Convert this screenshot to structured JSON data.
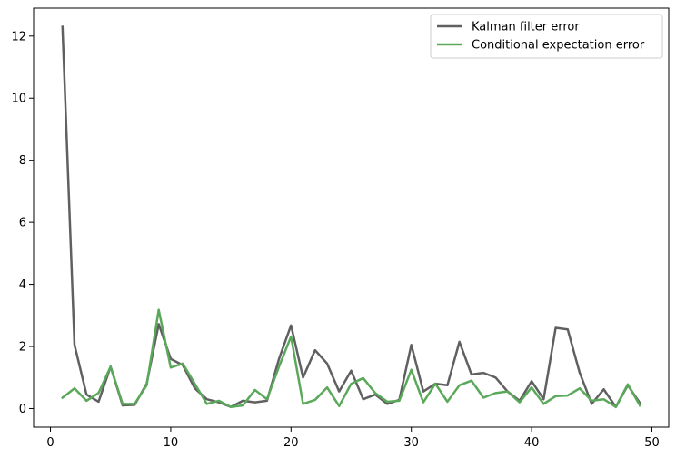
{
  "chart_data": {
    "type": "line",
    "x": [
      1,
      2,
      3,
      4,
      5,
      6,
      7,
      8,
      9,
      10,
      11,
      12,
      13,
      14,
      15,
      16,
      17,
      18,
      19,
      20,
      21,
      22,
      23,
      24,
      25,
      26,
      27,
      28,
      29,
      30,
      31,
      32,
      33,
      34,
      35,
      36,
      37,
      38,
      39,
      40,
      41,
      42,
      43,
      44,
      45,
      46,
      47,
      48,
      49
    ],
    "series": [
      {
        "name": "Kalman filter error",
        "color": "#606060",
        "values": [
          12.3,
          2.05,
          0.45,
          0.22,
          1.35,
          0.1,
          0.12,
          0.8,
          2.72,
          1.6,
          1.4,
          0.65,
          0.3,
          0.2,
          0.05,
          0.25,
          0.2,
          0.25,
          1.6,
          2.68,
          1.0,
          1.88,
          1.45,
          0.55,
          1.22,
          0.3,
          0.45,
          0.15,
          0.28,
          2.05,
          0.55,
          0.8,
          0.75,
          2.15,
          1.1,
          1.15,
          1.0,
          0.55,
          0.25,
          0.88,
          0.3,
          2.6,
          2.55,
          1.15,
          0.15,
          0.62,
          0.05,
          0.75,
          0.18
        ]
      },
      {
        "name": "Conditional expectation error",
        "color": "#5aa95a",
        "values": [
          0.35,
          0.65,
          0.25,
          0.5,
          1.35,
          0.15,
          0.15,
          0.75,
          3.18,
          1.32,
          1.45,
          0.8,
          0.15,
          0.25,
          0.05,
          0.1,
          0.6,
          0.3,
          1.35,
          2.32,
          0.15,
          0.28,
          0.68,
          0.08,
          0.8,
          0.98,
          0.5,
          0.22,
          0.25,
          1.25,
          0.2,
          0.8,
          0.22,
          0.75,
          0.9,
          0.35,
          0.5,
          0.55,
          0.2,
          0.68,
          0.15,
          0.4,
          0.42,
          0.65,
          0.25,
          0.3,
          0.05,
          0.78,
          0.1
        ]
      }
    ],
    "title": "",
    "xlabel": "",
    "ylabel": "",
    "xlim": [
      -1.4,
      51.4
    ],
    "ylim": [
      -0.6,
      12.9
    ],
    "xticks": [
      0,
      10,
      20,
      30,
      40,
      50
    ],
    "xtick_labels": [
      "0",
      "10",
      "20",
      "30",
      "40",
      "50"
    ],
    "yticks": [
      0,
      2,
      4,
      6,
      8,
      10,
      12
    ],
    "ytick_labels": [
      "0",
      "2",
      "4",
      "6",
      "8",
      "10",
      "12"
    ],
    "grid": false,
    "legend_position": "top-right"
  }
}
